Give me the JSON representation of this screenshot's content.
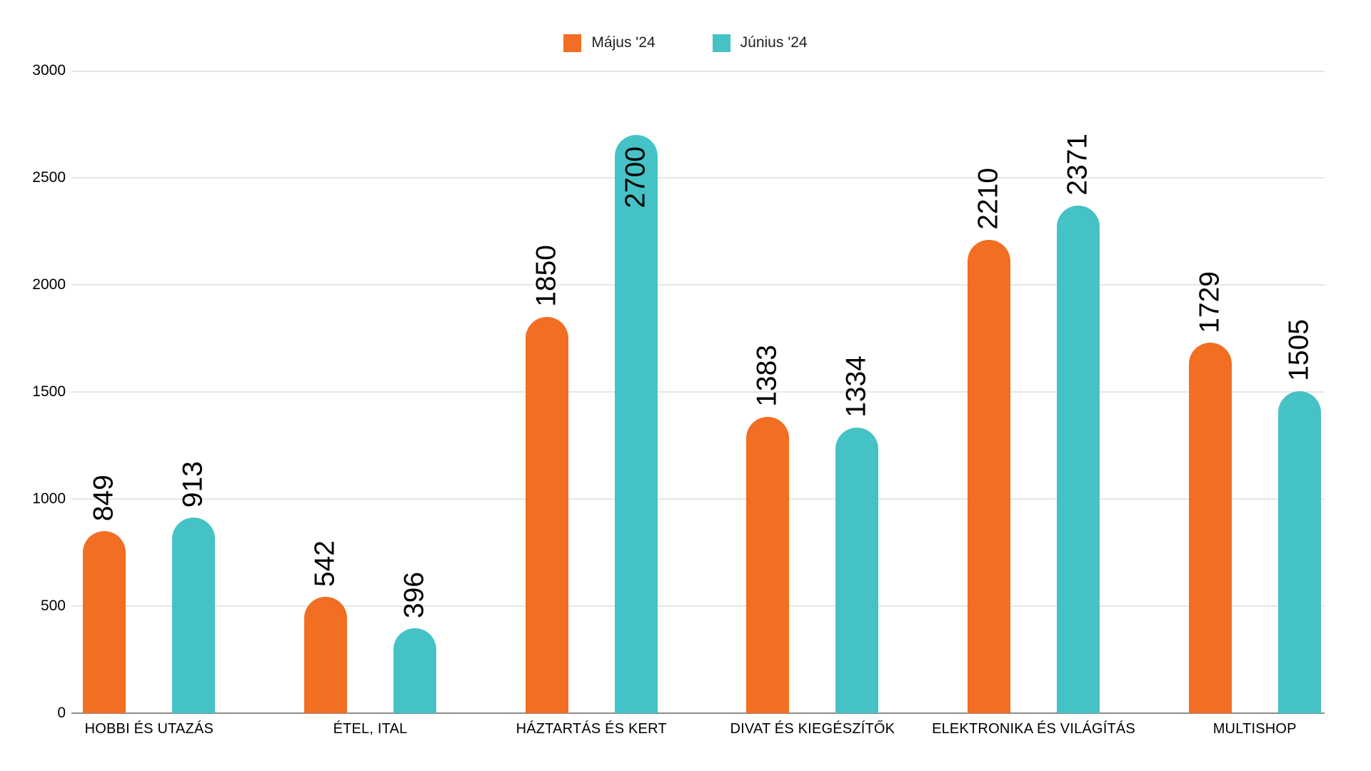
{
  "chart_data": {
    "type": "bar",
    "title": "",
    "categories": [
      "HOBBI ÉS UTAZÁS",
      "ÉTEL, ITAL",
      "HÁZTARTÁS ÉS KERT",
      "DIVAT ÉS KIEGÉSZÍTŐK",
      "ELEKTRONIKA ÉS VILÁGÍTÁS",
      "MULTISHOP"
    ],
    "series": [
      {
        "name": "Május '24",
        "color": "#F26E22",
        "values": [
          849,
          542,
          1850,
          1383,
          2210,
          1729
        ]
      },
      {
        "name": "Június '24",
        "color": "#45C2C6",
        "values": [
          913,
          396,
          2700,
          1334,
          2371,
          1505
        ]
      }
    ],
    "xlabel": "",
    "ylabel": "",
    "ylim": [
      0,
      3000
    ],
    "yticks": [
      0,
      500,
      1000,
      1500,
      2000,
      2500,
      3000
    ],
    "grid": true,
    "legend_position": "top",
    "bar_label_style": "values rotated 90° counter-clockwise above each bar (inside bar top when no room above)"
  },
  "colors": {
    "background": "#FFFFFF",
    "gridline": "#E6E6E6",
    "baseline": "#8C8C8C",
    "axis_text": "#000000",
    "annotation_text": "#000000"
  }
}
